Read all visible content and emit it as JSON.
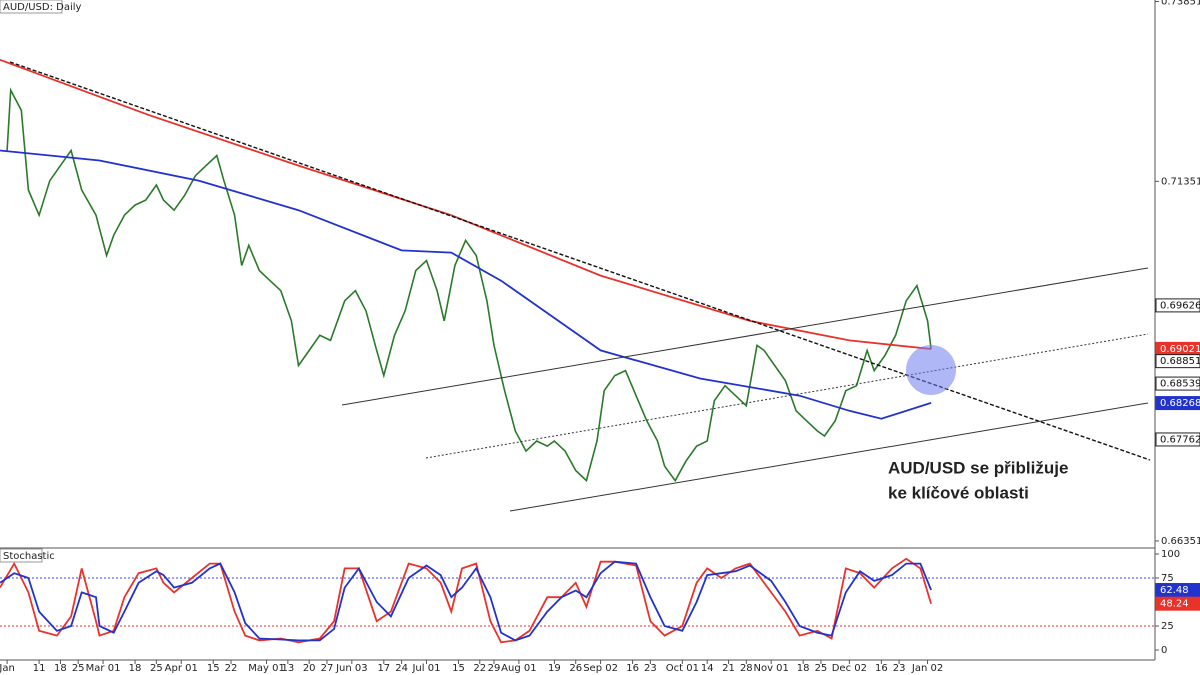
{
  "chart_data": [
    {
      "type": "line",
      "title": "AUD/USD: Daily",
      "annotation": [
        "AUD/USD se přibližuje",
        "ke klíčové oblasti"
      ],
      "xlim": [
        -2,
        323
      ],
      "ylim": [
        0.66253,
        0.73872
      ],
      "yticks": [
        0.66351,
        0.71351,
        0.73851
      ],
      "xticks": [
        {
          "value": 0,
          "label": "Jan"
        },
        {
          "value": 9,
          "label": "11"
        },
        {
          "value": 15,
          "label": "18"
        },
        {
          "value": 20,
          "label": "25"
        },
        {
          "value": 27,
          "label": "Mar 01"
        },
        {
          "value": 36,
          "label": "18"
        },
        {
          "value": 42,
          "label": "25"
        },
        {
          "value": 49,
          "label": "Apr 01"
        },
        {
          "value": 58,
          "label": "15"
        },
        {
          "value": 63,
          "label": "22"
        },
        {
          "value": 73,
          "label": "May 01"
        },
        {
          "value": 79,
          "label": "13"
        },
        {
          "value": 85,
          "label": "20"
        },
        {
          "value": 90,
          "label": "27"
        },
        {
          "value": 97,
          "label": "Jun 03"
        },
        {
          "value": 106,
          "label": "17"
        },
        {
          "value": 111,
          "label": "24"
        },
        {
          "value": 118,
          "label": "Jul 01"
        },
        {
          "value": 127,
          "label": "15"
        },
        {
          "value": 133,
          "label": "22"
        },
        {
          "value": 137,
          "label": "29"
        },
        {
          "value": 144,
          "label": "Aug 01"
        },
        {
          "value": 154,
          "label": "19"
        },
        {
          "value": 160,
          "label": "26"
        },
        {
          "value": 167,
          "label": "Sep 02"
        },
        {
          "value": 176,
          "label": "16"
        },
        {
          "value": 181,
          "label": "23"
        },
        {
          "value": 190,
          "label": "Oct 01"
        },
        {
          "value": 197,
          "label": "14"
        },
        {
          "value": 203,
          "label": "21"
        },
        {
          "value": 208,
          "label": "28"
        },
        {
          "value": 215,
          "label": "Nov 01"
        },
        {
          "value": 224,
          "label": "18"
        },
        {
          "value": 229,
          "label": "25"
        },
        {
          "value": 237,
          "label": "Dec 02"
        },
        {
          "value": 246,
          "label": "16"
        },
        {
          "value": 251,
          "label": "23"
        },
        {
          "value": 259,
          "label": "Jan 02"
        }
      ],
      "series": [
        {
          "color": "#2b7a2b",
          "x": [
            0,
            1,
            4,
            6,
            9,
            12,
            15,
            18,
            21,
            25,
            28,
            30,
            33,
            36,
            39,
            42,
            44,
            47,
            50,
            53,
            56,
            59,
            61,
            64,
            66,
            68,
            71,
            74,
            77,
            80,
            82,
            85,
            88,
            91,
            95,
            98,
            101,
            104,
            106,
            109,
            112,
            115,
            118,
            121,
            123,
            126,
            129,
            132,
            135,
            137,
            140,
            143,
            146,
            149,
            152,
            154,
            157,
            160,
            163,
            166,
            168,
            171,
            174,
            177,
            180,
            183,
            185,
            188,
            191,
            194,
            197,
            199,
            202,
            205,
            208,
            211,
            213,
            216,
            219,
            222,
            225,
            228,
            230,
            233,
            236,
            239,
            242,
            244,
            247,
            250,
            253,
            256,
            259,
            260
          ],
          "values": [
            0.7178,
            0.7262,
            0.7234,
            0.7123,
            0.7088,
            0.7136,
            0.7157,
            0.7178,
            0.7123,
            0.7088,
            0.7032,
            0.706,
            0.7088,
            0.7102,
            0.7109,
            0.713,
            0.7109,
            0.7095,
            0.7116,
            0.7143,
            0.7157,
            0.7171,
            0.7136,
            0.7088,
            0.7018,
            0.7046,
            0.7011,
            0.6997,
            0.6983,
            0.6941,
            0.6879,
            0.69,
            0.6921,
            0.6914,
            0.6969,
            0.6983,
            0.6955,
            0.69,
            0.6865,
            0.6921,
            0.6955,
            0.7011,
            0.7025,
            0.6983,
            0.6941,
            0.7018,
            0.7053,
            0.7032,
            0.6969,
            0.6907,
            0.6844,
            0.6788,
            0.676,
            0.6774,
            0.6767,
            0.6774,
            0.676,
            0.6733,
            0.6719,
            0.6774,
            0.6844,
            0.6865,
            0.6872,
            0.6837,
            0.6802,
            0.6774,
            0.6739,
            0.6719,
            0.6746,
            0.6767,
            0.6774,
            0.683,
            0.6851,
            0.6837,
            0.6823,
            0.6907,
            0.69,
            0.6879,
            0.6858,
            0.6816,
            0.6802,
            0.6788,
            0.6781,
            0.6802,
            0.6844,
            0.6851,
            0.69,
            0.6872,
            0.6893,
            0.6921,
            0.6969,
            0.699,
            0.6941,
            0.6902
          ]
        },
        {
          "color": "#e8322a",
          "x": [
            -2,
            40,
            82,
            125,
            167,
            209,
            237,
            260
          ],
          "values": [
            0.7304,
            0.7227,
            0.7157,
            0.7088,
            0.7004,
            0.6941,
            0.6914,
            0.6902
          ]
        },
        {
          "color": "#2233cc",
          "x": [
            -2,
            26,
            54,
            82,
            111,
            125,
            139,
            167,
            195,
            223,
            237,
            246,
            260
          ],
          "values": [
            0.7178,
            0.7164,
            0.7136,
            0.7095,
            0.7039,
            0.7036,
            0.6997,
            0.69,
            0.6861,
            0.6837,
            0.6816,
            0.6805,
            0.6827
          ]
        }
      ],
      "price_labels": [
        {
          "value": 0.69626,
          "color": "#ffffff"
        },
        {
          "value": 0.69021,
          "color": "#e8322a"
        },
        {
          "value": 0.68851,
          "color": "#ffffff"
        },
        {
          "value": 0.68539,
          "color": "#ffffff"
        },
        {
          "value": 0.68268,
          "color": "#2233cc"
        },
        {
          "value": 0.67762,
          "color": "#ffffff"
        }
      ]
    },
    {
      "type": "line",
      "title": "Stochastic",
      "xlim": [
        -2,
        323
      ],
      "ylim": [
        -10.4,
        106.25
      ],
      "yticks": [
        0,
        25,
        75,
        100
      ],
      "levels": [
        {
          "value": 75,
          "color": "#3344ff"
        },
        {
          "value": 25,
          "color": "#e8322a"
        }
      ],
      "series": [
        {
          "color": "#e8322a",
          "x": [
            -2,
            2,
            6,
            9,
            14,
            18,
            21,
            25,
            26,
            30,
            33,
            37,
            42,
            44,
            47,
            52,
            57,
            60,
            64,
            67,
            71,
            77,
            82,
            88,
            92,
            95,
            99,
            104,
            108,
            113,
            118,
            122,
            125,
            128,
            132,
            136,
            139,
            143,
            147,
            152,
            156,
            160,
            163,
            167,
            171,
            177,
            181,
            185,
            190,
            194,
            197,
            201,
            205,
            209,
            215,
            219,
            223,
            228,
            232,
            236,
            240,
            244,
            249,
            253,
            257,
            260
          ],
          "values": [
            65,
            90,
            60,
            20,
            15,
            35,
            85,
            30,
            15,
            20,
            55,
            80,
            85,
            70,
            60,
            75,
            90,
            90,
            40,
            15,
            10,
            12,
            8,
            12,
            30,
            85,
            85,
            30,
            40,
            90,
            85,
            70,
            40,
            85,
            90,
            30,
            8,
            10,
            20,
            55,
            55,
            70,
            45,
            92,
            92,
            88,
            30,
            15,
            25,
            70,
            85,
            75,
            85,
            90,
            60,
            40,
            15,
            20,
            12,
            85,
            80,
            65,
            85,
            95,
            85,
            48.24
          ]
        },
        {
          "color": "#2233cc",
          "x": [
            -2,
            2,
            6,
            9,
            14,
            18,
            21,
            25,
            26,
            30,
            33,
            37,
            42,
            44,
            47,
            52,
            57,
            60,
            64,
            67,
            71,
            77,
            82,
            88,
            92,
            95,
            99,
            104,
            108,
            113,
            118,
            122,
            125,
            128,
            132,
            136,
            139,
            143,
            147,
            152,
            156,
            160,
            163,
            167,
            171,
            177,
            181,
            185,
            190,
            194,
            197,
            201,
            205,
            209,
            215,
            219,
            223,
            228,
            232,
            236,
            240,
            244,
            249,
            253,
            257,
            260
          ],
          "values": [
            70,
            80,
            75,
            40,
            20,
            25,
            60,
            55,
            25,
            18,
            40,
            70,
            82,
            78,
            65,
            70,
            85,
            90,
            60,
            28,
            12,
            11,
            10,
            10,
            22,
            65,
            85,
            50,
            35,
            75,
            88,
            78,
            55,
            65,
            85,
            55,
            18,
            10,
            15,
            40,
            55,
            62,
            55,
            80,
            92,
            90,
            55,
            25,
            20,
            50,
            78,
            80,
            82,
            88,
            72,
            50,
            25,
            18,
            15,
            60,
            82,
            72,
            78,
            90,
            90,
            62.48
          ]
        }
      ],
      "price_labels": [
        {
          "value": 62.48,
          "color": "#2233cc"
        },
        {
          "value": 48.24,
          "color": "#e8322a"
        }
      ]
    }
  ]
}
